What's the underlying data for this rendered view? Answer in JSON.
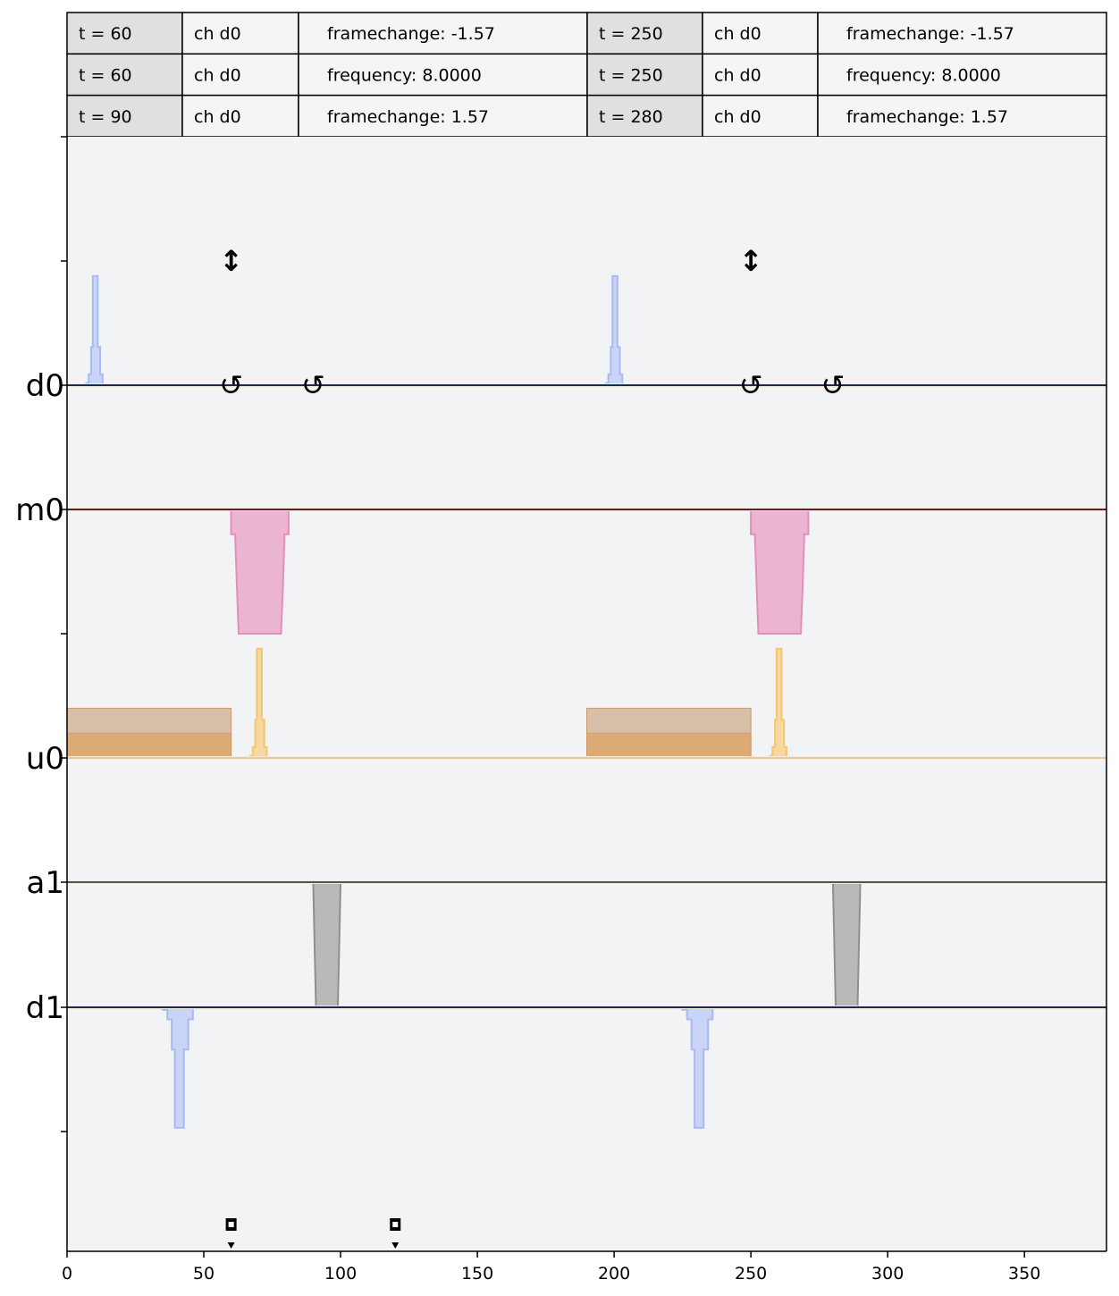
{
  "table": {
    "columns": [
      {
        "rows": [
          {
            "t": "t = 60",
            "ch": "ch d0",
            "info": "framechange: -1.57"
          },
          {
            "t": "t = 60",
            "ch": "ch d0",
            "info": "frequency: 8.0000"
          },
          {
            "t": "t = 90",
            "ch": "ch d0",
            "info": "framechange: 1.57"
          }
        ]
      },
      {
        "rows": [
          {
            "t": "t = 250",
            "ch": "ch d0",
            "info": "framechange: -1.57"
          },
          {
            "t": "t = 250",
            "ch": "ch d0",
            "info": "frequency: 8.0000"
          },
          {
            "t": "t = 280",
            "ch": "ch d0",
            "info": "framechange: 1.57"
          }
        ]
      }
    ]
  },
  "chart_data": {
    "type": "area",
    "title": "",
    "xlabel": "",
    "ylabel": "",
    "xlim": [
      0,
      380
    ],
    "x_ticks": [
      "0",
      "50",
      "100",
      "150",
      "200",
      "250",
      "300",
      "350"
    ],
    "x_tick_values": [
      0,
      50,
      100,
      150,
      200,
      250,
      300,
      350
    ],
    "grid": false,
    "colors": {
      "background": "#f2f3f5",
      "drive_fill": "#c9d4f7",
      "drive_line": "#a8baf2",
      "measure_fill": "#ebb4d1",
      "measure_line": "#e38fb9",
      "control_outer_fill": "#d8bfa8",
      "control_inner_fill": "#dfa76b",
      "control_peak_fill": "#f7d8a0",
      "control_peak_line": "#f5c66e",
      "acquire_fill": "#b8b9b8",
      "acquire_line": "#8e8f8e",
      "table_header_fill": "#e0e0e0",
      "table_fill": "#f5f5f5"
    },
    "channels": [
      {
        "name": "d0",
        "label": "d0"
      },
      {
        "name": "m0",
        "label": "m0"
      },
      {
        "name": "u0",
        "label": "u0"
      },
      {
        "name": "a1",
        "label": "a1"
      },
      {
        "name": "d1",
        "label": "d1"
      }
    ],
    "series": [
      {
        "channel": "d0",
        "kind": "gaussian",
        "direction": "up",
        "pulses": [
          {
            "start": 7,
            "end": 13,
            "amplitude": 0.88
          },
          {
            "start": 197,
            "end": 203,
            "amplitude": 0.88
          }
        ]
      },
      {
        "channel": "m0",
        "kind": "gaussian_square",
        "direction": "down",
        "pulses": [
          {
            "start": 60,
            "end": 81,
            "amplitude": 1.0
          },
          {
            "start": 250,
            "end": 271,
            "amplitude": 1.0
          }
        ]
      },
      {
        "channel": "u0",
        "kind": "square",
        "component": "outer",
        "direction": "up",
        "pulses": [
          {
            "start": 0,
            "end": 60,
            "amplitude": 0.4
          },
          {
            "start": 190,
            "end": 250,
            "amplitude": 0.4
          }
        ]
      },
      {
        "channel": "u0",
        "kind": "square",
        "component": "inner",
        "direction": "up",
        "pulses": [
          {
            "start": 0,
            "end": 60,
            "amplitude": 0.2
          },
          {
            "start": 190,
            "end": 250,
            "amplitude": 0.2
          }
        ]
      },
      {
        "channel": "u0",
        "kind": "gaussian",
        "component": "peak",
        "direction": "up",
        "pulses": [
          {
            "start": 67,
            "end": 73,
            "amplitude": 0.88
          },
          {
            "start": 257,
            "end": 263,
            "amplitude": 0.88
          }
        ]
      },
      {
        "channel": "a1",
        "kind": "acquire",
        "direction": "down",
        "pulses": [
          {
            "start": 90,
            "end": 100,
            "amplitude": 1.0
          },
          {
            "start": 280,
            "end": 290,
            "amplitude": 1.0
          }
        ]
      },
      {
        "channel": "d1",
        "kind": "gaussian",
        "direction": "down",
        "pulses": [
          {
            "start": 35,
            "end": 46,
            "amplitude": 0.97
          },
          {
            "start": 225,
            "end": 236,
            "amplitude": 0.97
          }
        ]
      }
    ],
    "frame_changes": [
      {
        "channel": "d0",
        "t": 60,
        "symbol": "↺"
      },
      {
        "channel": "d0",
        "t": 90,
        "symbol": "↺"
      },
      {
        "channel": "d0",
        "t": 250,
        "symbol": "↺"
      },
      {
        "channel": "d0",
        "t": 280,
        "symbol": "↺"
      }
    ],
    "frequency_changes": [
      {
        "channel": "d0",
        "t": 60,
        "symbol": "↕"
      },
      {
        "channel": "d0",
        "t": 250,
        "symbol": "↕"
      }
    ],
    "snapshots": [
      {
        "t": 60
      },
      {
        "t": 120
      }
    ]
  }
}
